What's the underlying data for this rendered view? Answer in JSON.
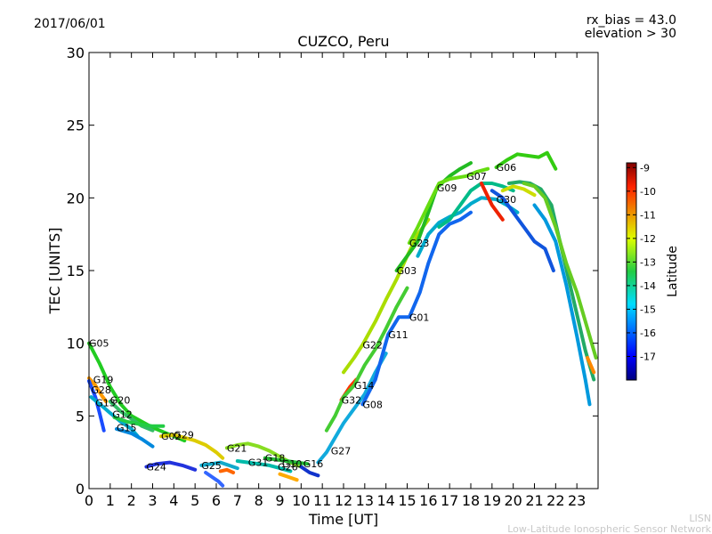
{
  "header": {
    "date": "2017/06/01",
    "rx_bias": "rx_bias = 43.0",
    "elevation": "elevation > 30",
    "title": "CUZCO, Peru"
  },
  "footer": {
    "line1": "LISN",
    "line2": "Low-Latitude Ionospheric Sensor Network"
  },
  "chart_data": {
    "type": "scatter",
    "title": "CUZCO, Peru",
    "xlabel": "Time [UT]",
    "ylabel": "TEC [UNITS]",
    "xlim": [
      0,
      24
    ],
    "ylim": [
      0,
      30
    ],
    "xticks": [
      "0",
      "1",
      "2",
      "3",
      "4",
      "5",
      "6",
      "7",
      "8",
      "9",
      "10",
      "11",
      "12",
      "13",
      "14",
      "15",
      "16",
      "17",
      "18",
      "19",
      "20",
      "21",
      "22",
      "23"
    ],
    "yticks": [
      0,
      5,
      10,
      15,
      20,
      25,
      30
    ],
    "colorbar": {
      "label": "Latitude",
      "range": [
        -18,
        -8.8
      ],
      "ticks": [
        "-9",
        "-10",
        "-11",
        "-12",
        "-13",
        "-14",
        "-15",
        "-16",
        "-17"
      ],
      "tick_values": [
        -9,
        -10,
        -11,
        -12,
        -13,
        -14,
        -15,
        -16,
        -17
      ]
    },
    "satellite_labels": [
      {
        "name": "G05",
        "x": 0.0,
        "y": 10.0
      },
      {
        "name": "G19",
        "x": 0.2,
        "y": 7.5
      },
      {
        "name": "G28",
        "x": 0.1,
        "y": 6.8
      },
      {
        "name": "G13",
        "x": 0.3,
        "y": 5.9
      },
      {
        "name": "G20",
        "x": 1.0,
        "y": 6.1
      },
      {
        "name": "G12",
        "x": 1.1,
        "y": 5.1
      },
      {
        "name": "G15",
        "x": 1.3,
        "y": 4.2
      },
      {
        "name": "G02",
        "x": 3.4,
        "y": 3.6
      },
      {
        "name": "G29",
        "x": 4.0,
        "y": 3.7
      },
      {
        "name": "G24",
        "x": 2.7,
        "y": 1.5
      },
      {
        "name": "G25",
        "x": 5.3,
        "y": 1.6
      },
      {
        "name": "G21",
        "x": 6.5,
        "y": 2.8
      },
      {
        "name": "G31",
        "x": 7.5,
        "y": 1.8
      },
      {
        "name": "G18",
        "x": 8.3,
        "y": 2.1
      },
      {
        "name": "G10",
        "x": 9.1,
        "y": 1.7
      },
      {
        "name": "G26",
        "x": 8.9,
        "y": 1.5
      },
      {
        "name": "G16",
        "x": 10.1,
        "y": 1.7
      },
      {
        "name": "G27",
        "x": 11.4,
        "y": 2.6
      },
      {
        "name": "G32",
        "x": 11.9,
        "y": 6.1
      },
      {
        "name": "G14",
        "x": 12.5,
        "y": 7.1
      },
      {
        "name": "G08",
        "x": 12.9,
        "y": 5.8
      },
      {
        "name": "G22",
        "x": 12.9,
        "y": 9.9
      },
      {
        "name": "G11",
        "x": 14.1,
        "y": 10.6
      },
      {
        "name": "G03",
        "x": 14.5,
        "y": 15.0
      },
      {
        "name": "G01",
        "x": 15.1,
        "y": 11.8
      },
      {
        "name": "G23",
        "x": 15.1,
        "y": 16.9
      },
      {
        "name": "G09",
        "x": 16.4,
        "y": 20.7
      },
      {
        "name": "G07",
        "x": 17.8,
        "y": 21.5
      },
      {
        "name": "G06",
        "x": 19.2,
        "y": 22.1
      },
      {
        "name": "G30",
        "x": 19.2,
        "y": 19.9
      }
    ],
    "series": [
      {
        "color": "#22cc22",
        "points": [
          [
            0.0,
            10.0
          ],
          [
            0.5,
            8.6
          ],
          [
            1.0,
            7.0
          ],
          [
            1.5,
            5.8
          ],
          [
            2.0,
            5.0
          ],
          [
            2.5,
            4.6
          ],
          [
            3.0,
            4.2
          ],
          [
            3.5,
            3.9
          ],
          [
            4.0,
            3.6
          ],
          [
            4.5,
            3.3
          ]
        ]
      },
      {
        "color": "#ff9900",
        "points": [
          [
            0.0,
            7.6
          ],
          [
            0.3,
            7.1
          ],
          [
            0.6,
            6.4
          ],
          [
            0.8,
            6.0
          ]
        ]
      },
      {
        "color": "#1a4cff",
        "points": [
          [
            0.0,
            7.4
          ],
          [
            0.3,
            6.3
          ],
          [
            0.5,
            5.2
          ],
          [
            0.7,
            4.0
          ]
        ]
      },
      {
        "color": "#00aacc",
        "points": [
          [
            0.1,
            6.3
          ],
          [
            0.6,
            5.7
          ],
          [
            1.0,
            5.2
          ],
          [
            1.5,
            4.6
          ],
          [
            2.0,
            4.1
          ],
          [
            2.3,
            3.6
          ]
        ]
      },
      {
        "color": "#33bb66",
        "points": [
          [
            1.0,
            6.0
          ],
          [
            1.5,
            5.3
          ],
          [
            2.0,
            4.8
          ],
          [
            2.5,
            4.3
          ],
          [
            3.0,
            4.0
          ]
        ]
      },
      {
        "color": "#22cc44",
        "points": [
          [
            1.2,
            4.9
          ],
          [
            1.8,
            4.6
          ],
          [
            2.5,
            4.4
          ],
          [
            3.0,
            4.3
          ],
          [
            3.5,
            4.3
          ]
        ]
      },
      {
        "color": "#0088dd",
        "points": [
          [
            1.3,
            4.1
          ],
          [
            2.0,
            3.8
          ],
          [
            2.5,
            3.4
          ],
          [
            3.0,
            2.9
          ]
        ]
      },
      {
        "color": "#ddcc00",
        "points": [
          [
            3.4,
            3.6
          ],
          [
            4.0,
            3.7
          ],
          [
            4.5,
            3.5
          ],
          [
            5.0,
            3.3
          ],
          [
            5.5,
            3.0
          ],
          [
            6.0,
            2.5
          ],
          [
            6.3,
            2.1
          ]
        ]
      },
      {
        "color": "#2233dd",
        "points": [
          [
            2.7,
            1.5
          ],
          [
            3.2,
            1.7
          ],
          [
            3.8,
            1.8
          ],
          [
            4.4,
            1.6
          ],
          [
            5.0,
            1.3
          ]
        ]
      },
      {
        "color": "#11aacc",
        "points": [
          [
            5.3,
            1.6
          ],
          [
            5.8,
            1.7
          ],
          [
            6.2,
            1.8
          ],
          [
            6.6,
            1.6
          ],
          [
            7.0,
            1.4
          ]
        ]
      },
      {
        "color": "#3366ff",
        "points": [
          [
            5.5,
            1.1
          ],
          [
            5.8,
            0.8
          ],
          [
            6.1,
            0.5
          ],
          [
            6.3,
            0.2
          ]
        ]
      },
      {
        "color": "#88dd22",
        "points": [
          [
            6.5,
            2.8
          ],
          [
            7.0,
            3.0
          ],
          [
            7.5,
            3.1
          ],
          [
            8.0,
            2.9
          ],
          [
            8.5,
            2.6
          ],
          [
            9.0,
            2.2
          ],
          [
            9.5,
            1.8
          ],
          [
            10.0,
            1.5
          ]
        ]
      },
      {
        "color": "#00bbaa",
        "points": [
          [
            7.0,
            1.9
          ],
          [
            7.5,
            1.8
          ],
          [
            8.0,
            1.7
          ],
          [
            8.5,
            1.6
          ],
          [
            9.0,
            1.4
          ],
          [
            9.5,
            1.2
          ]
        ]
      },
      {
        "color": "#22bb33",
        "points": [
          [
            8.3,
            2.1
          ],
          [
            8.8,
            2.0
          ],
          [
            9.3,
            1.9
          ],
          [
            9.8,
            1.8
          ],
          [
            10.3,
            1.7
          ]
        ]
      },
      {
        "color": "#ff6600",
        "points": [
          [
            6.2,
            1.2
          ],
          [
            6.5,
            1.3
          ],
          [
            6.8,
            1.1
          ]
        ]
      },
      {
        "color": "#ffaa00",
        "points": [
          [
            9.0,
            1.0
          ],
          [
            9.4,
            0.8
          ],
          [
            9.8,
            0.6
          ]
        ]
      },
      {
        "color": "#1133cc",
        "points": [
          [
            10.0,
            1.5
          ],
          [
            10.4,
            1.1
          ],
          [
            10.8,
            0.9
          ]
        ]
      },
      {
        "color": "#11aadd",
        "points": [
          [
            10.8,
            1.8
          ],
          [
            11.2,
            2.5
          ],
          [
            11.6,
            3.5
          ],
          [
            12.0,
            4.5
          ],
          [
            12.5,
            5.5
          ],
          [
            13.0,
            6.5
          ],
          [
            13.5,
            8.0
          ],
          [
            14.0,
            9.3
          ]
        ]
      },
      {
        "color": "#ff3300",
        "points": [
          [
            11.9,
            6.1
          ],
          [
            12.3,
            7.0
          ],
          [
            12.6,
            7.5
          ]
        ]
      },
      {
        "color": "#44cc33",
        "points": [
          [
            11.2,
            4.0
          ],
          [
            11.6,
            5.0
          ],
          [
            12.0,
            6.3
          ],
          [
            12.5,
            7.1
          ],
          [
            13.0,
            8.5
          ],
          [
            13.5,
            9.6
          ],
          [
            14.0,
            11.0
          ],
          [
            14.5,
            12.5
          ],
          [
            15.0,
            13.8
          ]
        ]
      },
      {
        "color": "#aadd00",
        "points": [
          [
            12.0,
            8.0
          ],
          [
            12.5,
            9.0
          ],
          [
            12.9,
            9.9
          ],
          [
            13.5,
            11.5
          ],
          [
            14.0,
            13.0
          ],
          [
            14.5,
            14.4
          ],
          [
            15.0,
            16.0
          ],
          [
            15.5,
            17.5
          ],
          [
            16.0,
            18.5
          ]
        ]
      },
      {
        "color": "#1166ee",
        "points": [
          [
            12.9,
            5.8
          ],
          [
            13.5,
            7.5
          ],
          [
            14.1,
            10.6
          ],
          [
            14.6,
            11.8
          ],
          [
            15.1,
            11.8
          ],
          [
            15.6,
            13.5
          ],
          [
            16.0,
            15.5
          ],
          [
            16.5,
            17.5
          ],
          [
            17.0,
            18.2
          ],
          [
            17.5,
            18.5
          ],
          [
            18.0,
            19.0
          ]
        ]
      },
      {
        "color": "#22bb22",
        "points": [
          [
            14.5,
            15.0
          ],
          [
            15.0,
            16.0
          ],
          [
            15.5,
            17.0
          ],
          [
            16.0,
            19.0
          ],
          [
            16.4,
            20.7
          ],
          [
            17.0,
            21.5
          ],
          [
            17.5,
            22.0
          ],
          [
            18.0,
            22.4
          ]
        ]
      },
      {
        "color": "#66dd11",
        "points": [
          [
            15.1,
            16.9
          ],
          [
            15.5,
            18.0
          ],
          [
            16.0,
            19.5
          ],
          [
            16.5,
            21.0
          ],
          [
            17.0,
            21.3
          ],
          [
            17.8,
            21.5
          ],
          [
            18.3,
            21.8
          ],
          [
            18.8,
            22.0
          ]
        ]
      },
      {
        "color": "#00aacc",
        "points": [
          [
            15.5,
            16.0
          ],
          [
            16.0,
            17.5
          ],
          [
            16.5,
            18.3
          ],
          [
            17.0,
            18.7
          ],
          [
            17.5,
            19.0
          ],
          [
            18.0,
            19.6
          ],
          [
            18.5,
            20.0
          ],
          [
            19.2,
            19.9
          ],
          [
            19.7,
            19.5
          ],
          [
            20.2,
            19.0
          ]
        ]
      },
      {
        "color": "#00bb88",
        "points": [
          [
            16.5,
            18.0
          ],
          [
            17.0,
            18.5
          ],
          [
            17.5,
            19.5
          ],
          [
            18.0,
            20.5
          ],
          [
            18.5,
            21.0
          ],
          [
            19.0,
            21.0
          ],
          [
            19.5,
            20.8
          ],
          [
            20.0,
            20.5
          ]
        ]
      },
      {
        "color": "#33cc11",
        "points": [
          [
            19.2,
            22.1
          ],
          [
            19.7,
            22.6
          ],
          [
            20.2,
            23.0
          ],
          [
            20.7,
            22.9
          ],
          [
            21.2,
            22.8
          ],
          [
            21.6,
            23.1
          ],
          [
            22.0,
            22.0
          ]
        ]
      },
      {
        "color": "#ee2200",
        "points": [
          [
            18.5,
            21.0
          ],
          [
            19.0,
            19.5
          ],
          [
            19.5,
            18.5
          ]
        ]
      },
      {
        "color": "#ccdd00",
        "points": [
          [
            19.5,
            20.5
          ],
          [
            20.0,
            20.8
          ],
          [
            20.5,
            20.6
          ],
          [
            21.0,
            20.2
          ]
        ]
      },
      {
        "color": "#22aa66",
        "points": [
          [
            19.8,
            21.0
          ],
          [
            20.3,
            21.1
          ],
          [
            20.8,
            21.0
          ],
          [
            21.3,
            20.6
          ],
          [
            21.8,
            19.5
          ],
          [
            22.2,
            17.0
          ],
          [
            22.6,
            14.5
          ],
          [
            23.0,
            12.0
          ],
          [
            23.4,
            9.5
          ],
          [
            23.8,
            7.5
          ]
        ]
      },
      {
        "color": "#66cc22",
        "points": [
          [
            20.5,
            21.0
          ],
          [
            21.0,
            20.8
          ],
          [
            21.5,
            20.0
          ],
          [
            22.0,
            18.0
          ],
          [
            22.5,
            15.5
          ],
          [
            23.0,
            13.5
          ],
          [
            23.5,
            11.0
          ],
          [
            23.9,
            9.0
          ]
        ]
      },
      {
        "color": "#1155dd",
        "points": [
          [
            19.0,
            20.5
          ],
          [
            19.5,
            20.0
          ],
          [
            20.0,
            19.0
          ],
          [
            20.5,
            18.0
          ],
          [
            21.0,
            17.0
          ],
          [
            21.5,
            16.5
          ],
          [
            21.9,
            15.0
          ]
        ]
      },
      {
        "color": "#0099dd",
        "points": [
          [
            21.0,
            19.5
          ],
          [
            21.5,
            18.5
          ],
          [
            22.0,
            17.0
          ],
          [
            22.5,
            14.0
          ],
          [
            23.0,
            10.5
          ],
          [
            23.4,
            7.5
          ],
          [
            23.6,
            5.8
          ]
        ]
      },
      {
        "color": "#ff8800",
        "points": [
          [
            23.5,
            9.0
          ],
          [
            23.8,
            8.0
          ]
        ]
      }
    ]
  }
}
